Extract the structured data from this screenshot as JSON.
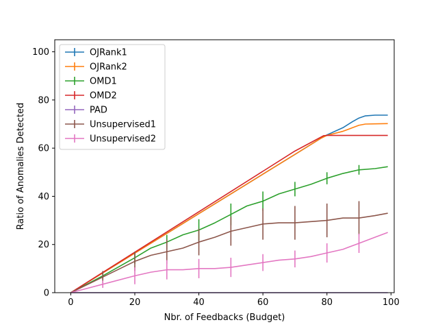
{
  "chart_data": {
    "type": "line",
    "xlabel": "Nbr. of Feedbacks (Budget)",
    "ylabel": "Ratio of Anomalies Detected",
    "xlim": [
      -5,
      101
    ],
    "ylim": [
      0,
      105
    ],
    "xticks": [
      0,
      20,
      40,
      60,
      80,
      100
    ],
    "yticks": [
      0,
      20,
      40,
      60,
      80,
      100
    ],
    "legend_position": "top-left",
    "grid": false,
    "series": [
      {
        "name": "OJRank1",
        "color": "#1f77b4",
        "x": [
          0,
          10,
          20,
          30,
          40,
          50,
          60,
          70,
          78,
          80,
          85,
          88,
          90,
          92,
          95,
          99
        ],
        "y": [
          0,
          8.2,
          16.4,
          24.6,
          32.8,
          41.0,
          49.2,
          57.4,
          64.0,
          65.5,
          68.5,
          71.0,
          72.5,
          73.4,
          73.7,
          73.7
        ],
        "err_x": [
          10,
          20,
          30,
          40,
          50,
          60,
          70,
          80,
          90
        ],
        "err_y": [
          0,
          0,
          0,
          0,
          0,
          0,
          0,
          0,
          0
        ]
      },
      {
        "name": "OJRank2",
        "color": "#ff7f0e",
        "x": [
          0,
          10,
          20,
          30,
          40,
          50,
          60,
          70,
          78,
          80,
          85,
          88,
          90,
          92,
          95,
          99
        ],
        "y": [
          0,
          8.2,
          16.4,
          24.6,
          32.8,
          41.0,
          49.2,
          57.4,
          64.0,
          65.3,
          67.0,
          68.5,
          69.5,
          70.0,
          70.1,
          70.2
        ],
        "err_x": [
          10,
          20,
          30,
          40,
          50,
          60,
          70,
          80,
          90
        ],
        "err_y": [
          0,
          0,
          0,
          0,
          0,
          0,
          0,
          0,
          0
        ]
      },
      {
        "name": "OMD1",
        "color": "#2ca02c",
        "x": [
          0,
          10,
          20,
          25,
          30,
          35,
          40,
          45,
          50,
          55,
          60,
          65,
          70,
          75,
          80,
          85,
          90,
          95,
          99
        ],
        "y": [
          0,
          7.0,
          14.5,
          18.5,
          21.0,
          24.0,
          26.0,
          29.0,
          32.5,
          36.0,
          38.0,
          41.0,
          43.0,
          45.0,
          47.5,
          49.5,
          51.0,
          51.5,
          52.3
        ],
        "err_x": [
          10,
          20,
          30,
          40,
          50,
          60,
          70,
          80,
          90
        ],
        "err_y": [
          1.5,
          2.5,
          3.0,
          4.5,
          4.5,
          4.0,
          3.0,
          2.5,
          2.0
        ]
      },
      {
        "name": "OMD2",
        "color": "#d62728",
        "x": [
          0,
          10,
          20,
          30,
          40,
          50,
          60,
          70,
          79,
          80,
          99
        ],
        "y": [
          0,
          8.4,
          16.8,
          25.2,
          33.6,
          42.0,
          50.4,
          58.8,
          65.2,
          65.3,
          65.3
        ],
        "err_x": [
          10,
          20,
          30,
          40,
          50,
          60,
          70,
          80,
          90
        ],
        "err_y": [
          0,
          0,
          0,
          0,
          0,
          0,
          0,
          0,
          0
        ]
      },
      {
        "name": "PAD",
        "color": "#9467bd",
        "x": [
          0,
          99
        ],
        "y": [
          0,
          0
        ],
        "err_x": [],
        "err_y": []
      },
      {
        "name": "Unsupervised1",
        "color": "#8c564b",
        "x": [
          0,
          10,
          20,
          25,
          30,
          35,
          40,
          45,
          50,
          55,
          60,
          65,
          70,
          75,
          80,
          85,
          90,
          95,
          99
        ],
        "y": [
          0,
          6.5,
          13.0,
          15.5,
          17.0,
          18.5,
          21.0,
          23.0,
          25.5,
          27.0,
          28.5,
          29.0,
          29.0,
          29.5,
          30.0,
          31.0,
          31.0,
          32.0,
          33.0
        ],
        "err_x": [
          10,
          20,
          30,
          40,
          50,
          60,
          70,
          80,
          90
        ],
        "err_y": [
          2.5,
          4.0,
          5.0,
          5.5,
          6.0,
          6.5,
          7.0,
          7.0,
          7.0
        ]
      },
      {
        "name": "Unsupervised2",
        "color": "#e377c2",
        "x": [
          0,
          10,
          20,
          25,
          30,
          35,
          40,
          45,
          50,
          55,
          60,
          65,
          70,
          75,
          80,
          85,
          90,
          95,
          99
        ],
        "y": [
          0,
          3.5,
          7.0,
          8.5,
          9.5,
          9.5,
          10.0,
          10.0,
          10.5,
          11.5,
          12.5,
          13.5,
          14.0,
          15.0,
          16.5,
          18.0,
          20.5,
          23.0,
          25.0
        ],
        "err_x": [
          10,
          20,
          30,
          40,
          50,
          60,
          70,
          80,
          90
        ],
        "err_y": [
          1.5,
          3.5,
          4.0,
          4.0,
          4.0,
          3.5,
          3.5,
          4.0,
          4.0
        ]
      }
    ]
  }
}
